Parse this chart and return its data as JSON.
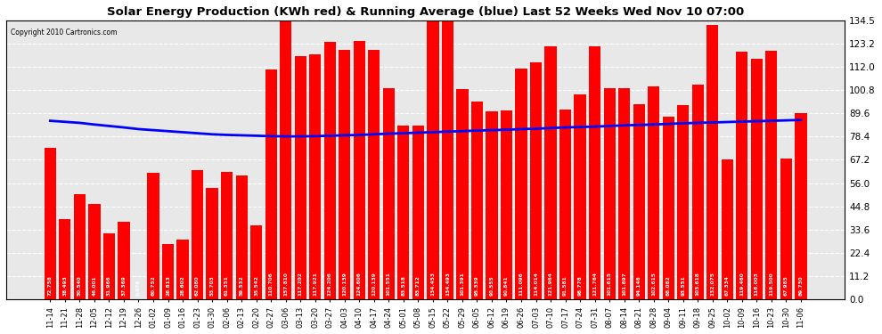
{
  "title": "Solar Energy Production (KWh red) & Running Average (blue) Last 52 Weeks Wed Nov 10 07:00",
  "copyright": "Copyright 2010 Cartronics.com",
  "bar_color": "#ff0000",
  "avg_line_color": "#0000ff",
  "background_color": "#ffffff",
  "plot_bg_color": "#e8e8e8",
  "grid_color": "#ffffff",
  "ylim": [
    0,
    134.5
  ],
  "yticks": [
    0.0,
    11.2,
    22.4,
    33.6,
    44.8,
    56.0,
    67.2,
    78.4,
    89.6,
    100.8,
    112.0,
    123.2,
    134.5
  ],
  "categories": [
    "11-14",
    "11-21",
    "11-28",
    "12-05",
    "12-12",
    "12-19",
    "12-26",
    "01-02",
    "01-09",
    "01-16",
    "01-23",
    "01-30",
    "02-06",
    "02-13",
    "02-20",
    "02-27",
    "03-06",
    "03-13",
    "03-20",
    "03-27",
    "04-03",
    "04-10",
    "04-17",
    "04-24",
    "05-01",
    "05-08",
    "05-15",
    "05-22",
    "05-29",
    "06-05",
    "06-12",
    "06-19",
    "06-26",
    "07-03",
    "07-10",
    "07-17",
    "07-24",
    "07-31",
    "08-07",
    "08-14",
    "08-21",
    "08-28",
    "09-04",
    "09-11",
    "09-18",
    "09-25",
    "10-02",
    "10-09",
    "10-16",
    "10-23",
    "10-30",
    "11-06"
  ],
  "values": [
    72.758,
    38.493,
    50.54,
    46.001,
    31.966,
    37.369,
    0.079,
    60.752,
    26.813,
    28.602,
    62.08,
    53.703,
    61.351,
    59.532,
    35.542,
    110.706,
    157.81,
    117.202,
    117.921,
    124.206,
    120.139,
    124.606,
    120.139,
    101.551,
    83.518,
    83.712,
    134.453,
    134.493,
    101.391,
    95.339,
    90.555,
    90.841,
    111.096,
    114.014,
    121.964,
    91.581,
    98.778,
    121.764,
    101.615,
    101.897,
    94.146,
    102.615,
    88.082,
    93.551,
    103.618,
    132.075,
    67.334,
    119.46,
    116.003,
    119.5,
    67.985,
    89.73
  ],
  "running_avg": [
    86.0,
    85.5,
    85.0,
    84.2,
    83.5,
    82.8,
    82.0,
    81.5,
    81.0,
    80.5,
    80.0,
    79.5,
    79.2,
    79.0,
    78.8,
    78.6,
    78.5,
    78.5,
    78.6,
    78.8,
    79.0,
    79.2,
    79.5,
    79.8,
    80.0,
    80.3,
    80.5,
    80.8,
    81.0,
    81.3,
    81.5,
    81.7,
    82.0,
    82.2,
    82.5,
    82.8,
    83.0,
    83.2,
    83.5,
    83.8,
    84.0,
    84.2,
    84.5,
    84.8,
    85.0,
    85.2,
    85.4,
    85.6,
    85.8,
    86.0,
    86.2,
    86.4
  ]
}
